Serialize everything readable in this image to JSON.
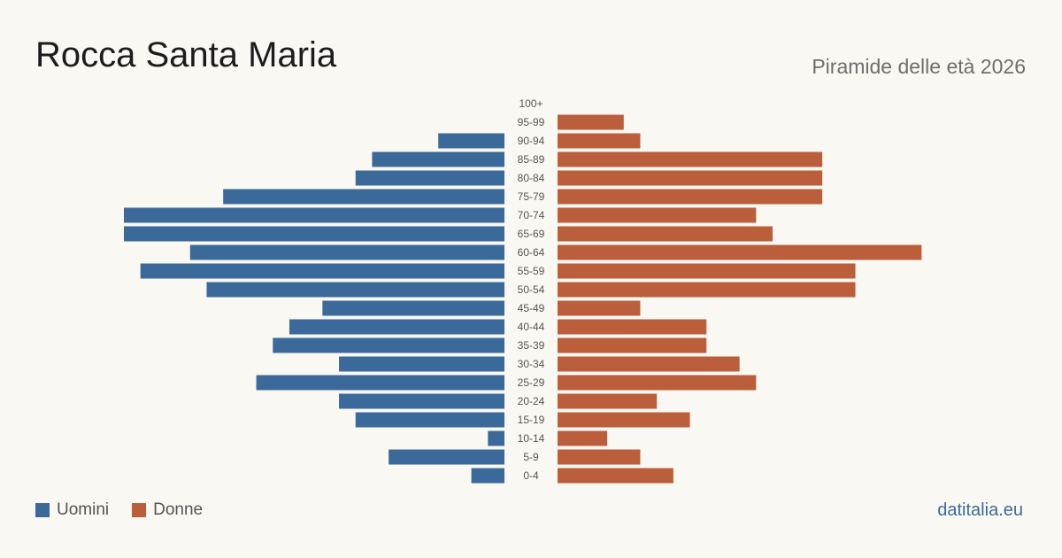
{
  "header": {
    "title": "Rocca Santa Maria",
    "subtitle": "Piramide delle età 2026"
  },
  "legend": {
    "male_label": "Uomini",
    "female_label": "Donne"
  },
  "brand": "datitalia.eu",
  "colors": {
    "male": "#3b6a9a",
    "female": "#bb5e3c",
    "background": "#faf8f3",
    "label": "#555555"
  },
  "chart_data": {
    "type": "bar",
    "orientation": "horizontal-pyramid",
    "categories": [
      "100+",
      "95-99",
      "90-94",
      "85-89",
      "80-84",
      "75-79",
      "70-74",
      "65-69",
      "60-64",
      "55-59",
      "50-54",
      "45-49",
      "40-44",
      "35-39",
      "30-34",
      "25-29",
      "20-24",
      "15-19",
      "10-14",
      "5-9",
      "0-4"
    ],
    "series": [
      {
        "name": "Uomini",
        "values": [
          0,
          0,
          4,
          8,
          9,
          17,
          23,
          23,
          19,
          22,
          18,
          11,
          13,
          14,
          10,
          15,
          10,
          9,
          1,
          7,
          2
        ]
      },
      {
        "name": "Donne",
        "values": [
          0,
          4,
          5,
          16,
          16,
          16,
          12,
          13,
          22,
          18,
          18,
          5,
          9,
          9,
          11,
          12,
          6,
          8,
          3,
          5,
          7
        ]
      }
    ],
    "xlim": [
      0,
      23
    ],
    "grid": false,
    "legend_position": "bottom-left"
  }
}
